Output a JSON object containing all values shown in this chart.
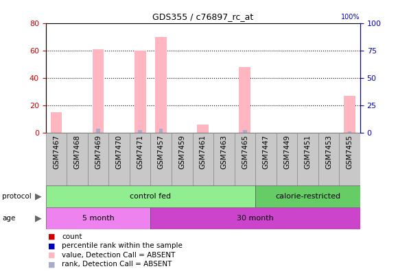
{
  "title": "GDS355 / c76897_rc_at",
  "samples": [
    "GSM7467",
    "GSM7468",
    "GSM7469",
    "GSM7470",
    "GSM7471",
    "GSM7457",
    "GSM7459",
    "GSM7461",
    "GSM7463",
    "GSM7465",
    "GSM7447",
    "GSM7449",
    "GSM7451",
    "GSM7453",
    "GSM7455"
  ],
  "pink_bars": [
    15,
    0,
    61,
    0,
    60,
    70,
    0,
    6,
    0,
    48,
    0,
    0,
    0,
    0,
    27
  ],
  "blue_bars": [
    0,
    0,
    3,
    0,
    2,
    3,
    0,
    0,
    0,
    2,
    0,
    0,
    0,
    0,
    1
  ],
  "ylim_left": [
    0,
    80
  ],
  "ylim_right": [
    0,
    100
  ],
  "yticks_left": [
    0,
    20,
    40,
    60,
    80
  ],
  "yticks_right": [
    0,
    25,
    50,
    75,
    100
  ],
  "protocol_groups": [
    {
      "label": "control fed",
      "start": 0,
      "end": 10,
      "color": "#90EE90"
    },
    {
      "label": "calorie-restricted",
      "start": 10,
      "end": 15,
      "color": "#66CC66"
    }
  ],
  "age_groups": [
    {
      "label": "5 month",
      "start": 0,
      "end": 5,
      "color": "#EE82EE"
    },
    {
      "label": "30 month",
      "start": 5,
      "end": 15,
      "color": "#CC44CC"
    }
  ],
  "pink_color": "#FFB6C1",
  "blue_color": "#AAAACC",
  "bg_color": "#FFFFFF",
  "left_axis_color": "#CC0000",
  "right_axis_color": "#0000BB",
  "xtick_bg": "#C8C8C8",
  "legend_colors": [
    "#CC0000",
    "#0000BB",
    "#FFB6C1",
    "#AAAACC"
  ],
  "legend_labels": [
    "count",
    "percentile rank within the sample",
    "value, Detection Call = ABSENT",
    "rank, Detection Call = ABSENT"
  ]
}
